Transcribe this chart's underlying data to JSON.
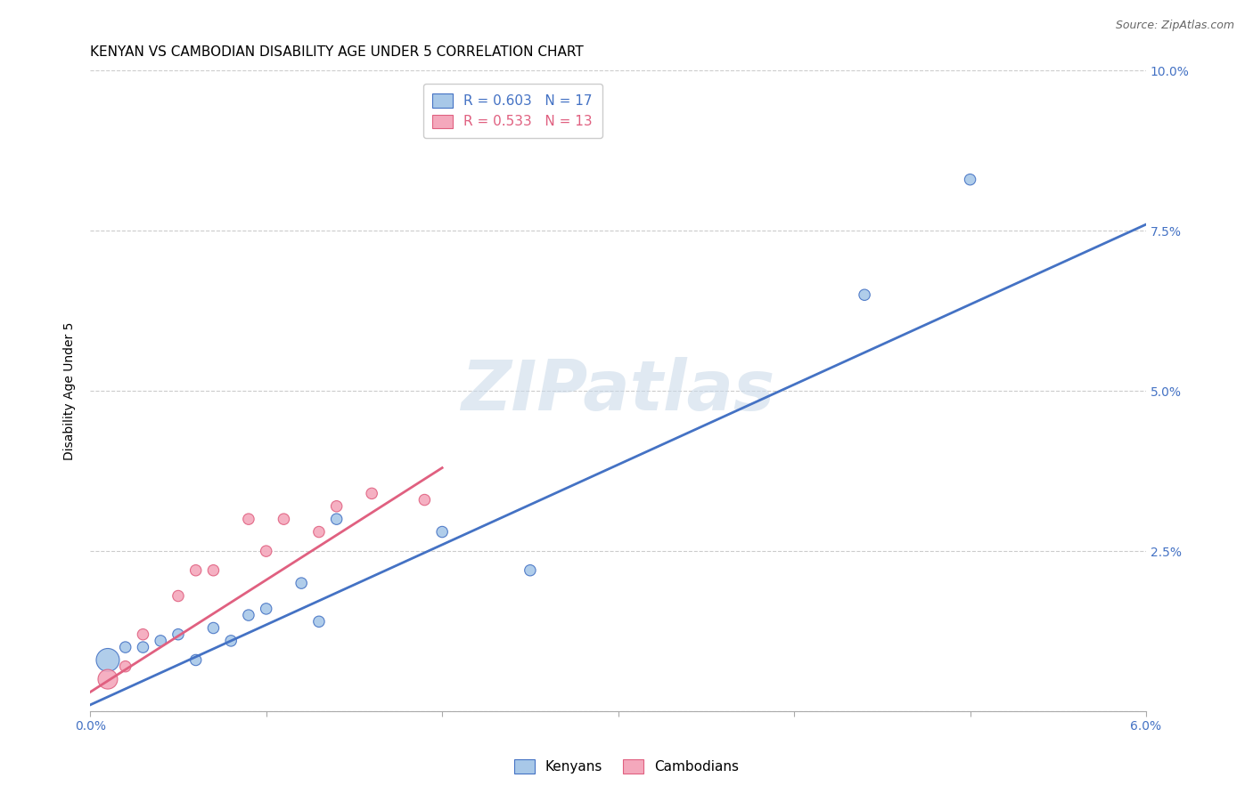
{
  "title": "KENYAN VS CAMBODIAN DISABILITY AGE UNDER 5 CORRELATION CHART",
  "source": "Source: ZipAtlas.com",
  "ylabel": "Disability Age Under 5",
  "xlim": [
    0.0,
    0.06
  ],
  "ylim": [
    0.0,
    0.1
  ],
  "xticks": [
    0.0,
    0.01,
    0.02,
    0.03,
    0.04,
    0.05,
    0.06
  ],
  "xtick_labels": [
    "0.0%",
    "",
    "",
    "",
    "",
    "",
    "6.0%"
  ],
  "yticks_right": [
    0.0,
    0.025,
    0.05,
    0.075,
    0.1
  ],
  "ytick_labels_right": [
    "",
    "2.5%",
    "5.0%",
    "7.5%",
    "10.0%"
  ],
  "grid_color": "#cccccc",
  "background_color": "#ffffff",
  "kenyan_color": "#a8c8e8",
  "cambodian_color": "#f4a8bc",
  "kenyan_line_color": "#4472c4",
  "cambodian_line_color": "#e06080",
  "legend_r_kenyan": "0.603",
  "legend_n_kenyan": "17",
  "legend_r_cambodian": "0.533",
  "legend_n_cambodian": "13",
  "kenyan_x": [
    0.001,
    0.002,
    0.003,
    0.004,
    0.005,
    0.006,
    0.007,
    0.008,
    0.009,
    0.01,
    0.012,
    0.013,
    0.014,
    0.02,
    0.025,
    0.044,
    0.05
  ],
  "kenyan_y": [
    0.008,
    0.01,
    0.01,
    0.011,
    0.012,
    0.008,
    0.013,
    0.011,
    0.015,
    0.016,
    0.02,
    0.014,
    0.03,
    0.028,
    0.022,
    0.065,
    0.083
  ],
  "kenyan_size": [
    350,
    80,
    80,
    80,
    80,
    80,
    80,
    80,
    80,
    80,
    80,
    80,
    80,
    80,
    80,
    80,
    80
  ],
  "cambodian_x": [
    0.001,
    0.002,
    0.003,
    0.005,
    0.006,
    0.007,
    0.009,
    0.01,
    0.011,
    0.013,
    0.014,
    0.016,
    0.019
  ],
  "cambodian_y": [
    0.005,
    0.007,
    0.012,
    0.018,
    0.022,
    0.022,
    0.03,
    0.025,
    0.03,
    0.028,
    0.032,
    0.034,
    0.033
  ],
  "cambodian_size": [
    250,
    80,
    80,
    80,
    80,
    80,
    80,
    80,
    80,
    80,
    80,
    80,
    80
  ],
  "kenyan_trend_x": [
    0.0,
    0.06
  ],
  "kenyan_trend_y": [
    0.001,
    0.076
  ],
  "cambodian_trend_x": [
    0.0,
    0.02
  ],
  "cambodian_trend_y": [
    0.003,
    0.038
  ],
  "watermark": "ZIPatlas",
  "watermark_color": "#c8d8e8",
  "title_fontsize": 11,
  "axis_label_fontsize": 10,
  "tick_fontsize": 10,
  "legend_fontsize": 11
}
